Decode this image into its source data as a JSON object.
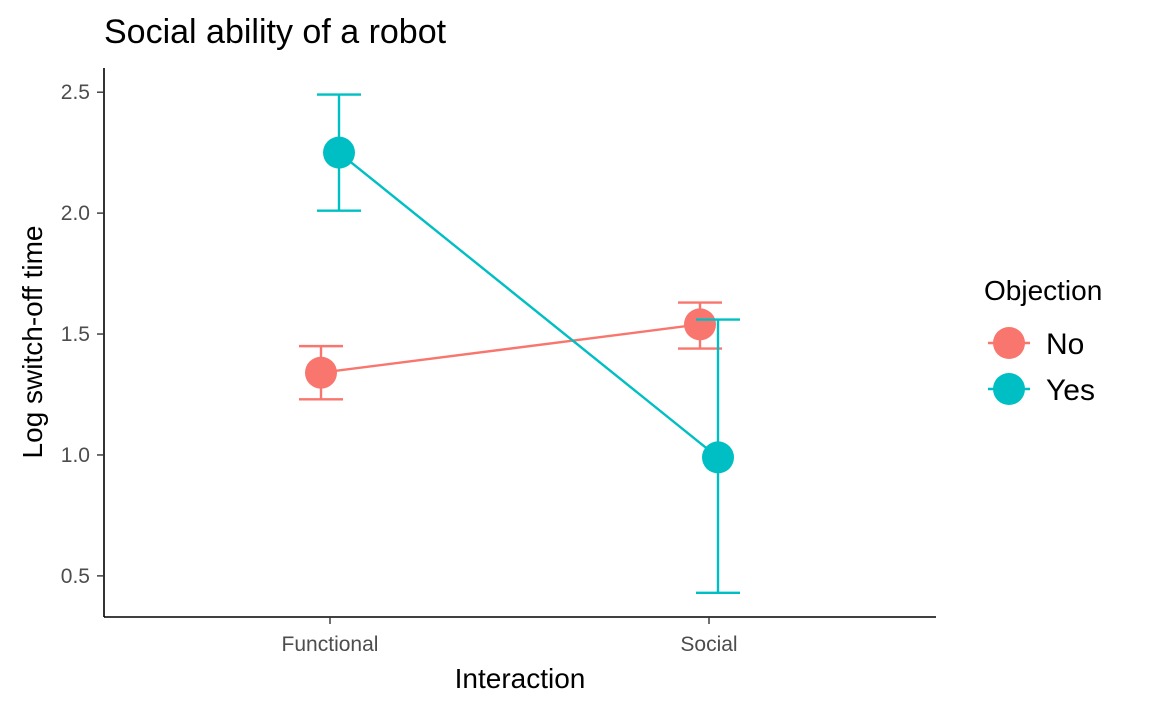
{
  "chart_data": {
    "type": "line",
    "title": "Social ability of a robot",
    "xlabel": "Interaction",
    "ylabel": "Log switch-off time",
    "categories": [
      "Functional",
      "Social"
    ],
    "ylim": [
      0.33,
      2.6
    ],
    "yticks": [
      0.5,
      1.0,
      1.5,
      2.0,
      2.5
    ],
    "ytick_labels": [
      "0.5",
      "1.0",
      "1.5",
      "2.0",
      "2.5"
    ],
    "grid": false,
    "legend": {
      "title": "Objection",
      "position": "right"
    },
    "series": [
      {
        "name": "No",
        "color": "#F8766D",
        "values": [
          1.34,
          1.54
        ],
        "error_low": [
          1.23,
          1.44
        ],
        "error_high": [
          1.45,
          1.63
        ]
      },
      {
        "name": "Yes",
        "color": "#00BFC4",
        "values": [
          2.25,
          0.99
        ],
        "error_low": [
          2.01,
          0.43
        ],
        "error_high": [
          2.49,
          1.56
        ]
      }
    ]
  }
}
